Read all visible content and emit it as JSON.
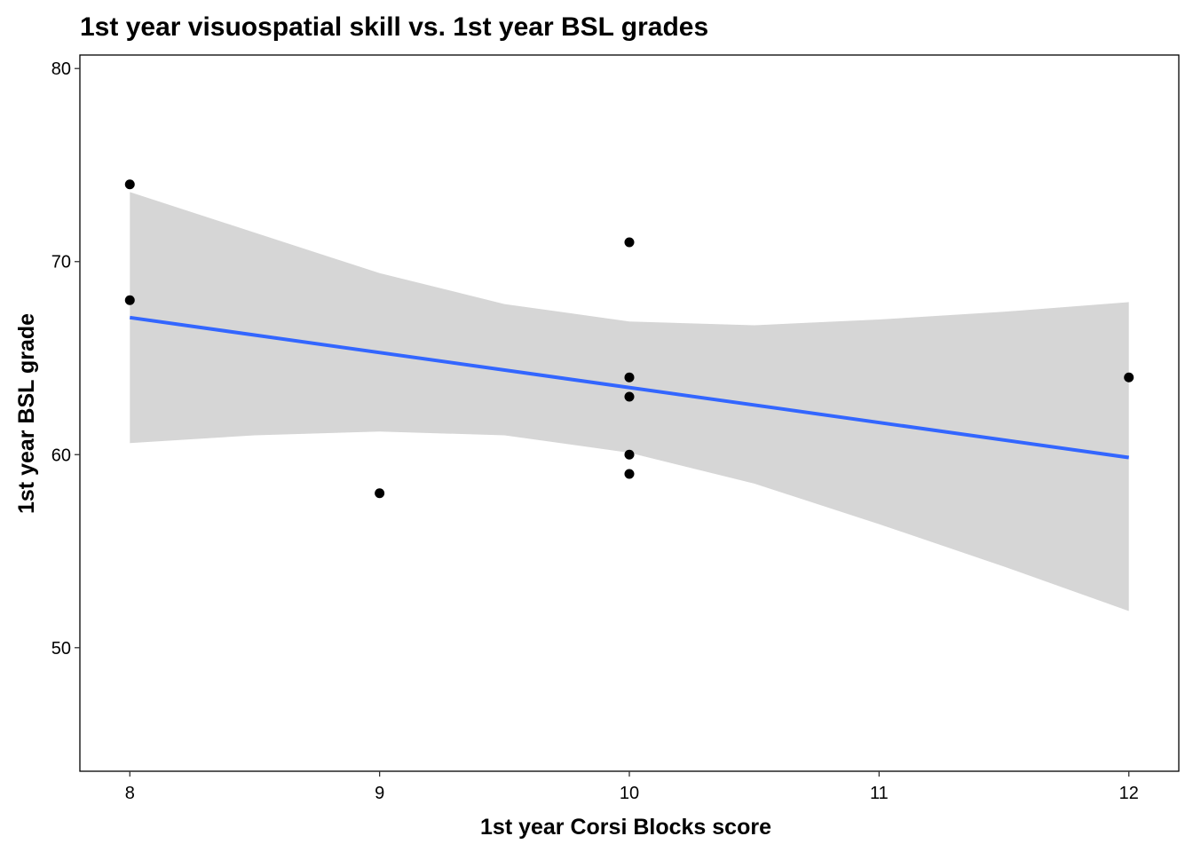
{
  "chart_data": {
    "type": "scatter",
    "title": "1st year visuospatial skill vs. 1st year BSL grades",
    "xlabel": "1st year Corsi Blocks score",
    "ylabel": "1st year BSL grade",
    "xlim": [
      7.8,
      12.2
    ],
    "ylim": [
      43.6,
      80.7
    ],
    "x_ticks": [
      8,
      9,
      10,
      11,
      12
    ],
    "y_ticks": [
      50,
      60,
      70,
      80
    ],
    "grid": false,
    "legend": "none",
    "points": [
      {
        "x": 8,
        "y": 74
      },
      {
        "x": 8,
        "y": 68
      },
      {
        "x": 9,
        "y": 58
      },
      {
        "x": 10,
        "y": 71
      },
      {
        "x": 10,
        "y": 64
      },
      {
        "x": 10,
        "y": 63
      },
      {
        "x": 10,
        "y": 60
      },
      {
        "x": 10,
        "y": 59
      },
      {
        "x": 12,
        "y": 64
      }
    ],
    "fit_line": {
      "method": "linear",
      "x": [
        8,
        12
      ],
      "y": [
        67.1,
        59.85
      ]
    },
    "confidence_band": [
      {
        "x": 8,
        "lower": 60.6,
        "upper": 73.6
      },
      {
        "x": 8.5,
        "lower": 61.0,
        "upper": 71.5
      },
      {
        "x": 9,
        "lower": 61.2,
        "upper": 69.4
      },
      {
        "x": 9.5,
        "lower": 61.0,
        "upper": 67.8
      },
      {
        "x": 10,
        "lower": 60.1,
        "upper": 66.9
      },
      {
        "x": 10.5,
        "lower": 58.5,
        "upper": 66.7
      },
      {
        "x": 11,
        "lower": 56.4,
        "upper": 67.0
      },
      {
        "x": 11.5,
        "lower": 54.2,
        "upper": 67.4
      },
      {
        "x": 12,
        "lower": 51.9,
        "upper": 67.9
      }
    ],
    "colors": {
      "points": "#000000",
      "fit_line": "#3366FF",
      "band": "#D6D6D6",
      "panel_border": "#000000",
      "background": "#FFFFFF"
    }
  }
}
